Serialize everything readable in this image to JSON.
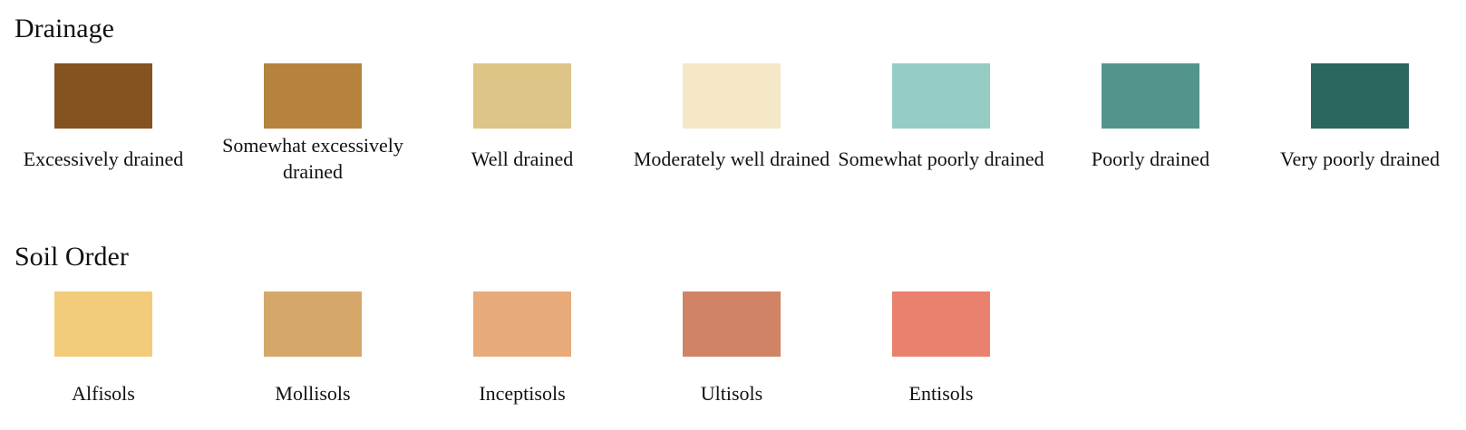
{
  "drainage": {
    "title": "Drainage",
    "items": [
      {
        "label": "Excessively drained",
        "color": "#84531f"
      },
      {
        "label": "Somewhat excessively drained",
        "color": "#b5833d"
      },
      {
        "label": "Well drained",
        "color": "#ddc487"
      },
      {
        "label": "Moderately well drained",
        "color": "#f5e8c7"
      },
      {
        "label": "Somewhat poorly drained",
        "color": "#95ccc3"
      },
      {
        "label": "Poorly drained",
        "color": "#53958d"
      },
      {
        "label": "Very poorly drained",
        "color": "#2c675f"
      }
    ]
  },
  "soil_order": {
    "title": "Soil Order",
    "items": [
      {
        "label": "Alfisols",
        "color": "#f2cc7a"
      },
      {
        "label": "Mollisols",
        "color": "#d5a86a"
      },
      {
        "label": "Inceptisols",
        "color": "#e9aa7a"
      },
      {
        "label": "Ultisols",
        "color": "#d18465"
      },
      {
        "label": "Entisols",
        "color": "#e9816e"
      }
    ]
  }
}
